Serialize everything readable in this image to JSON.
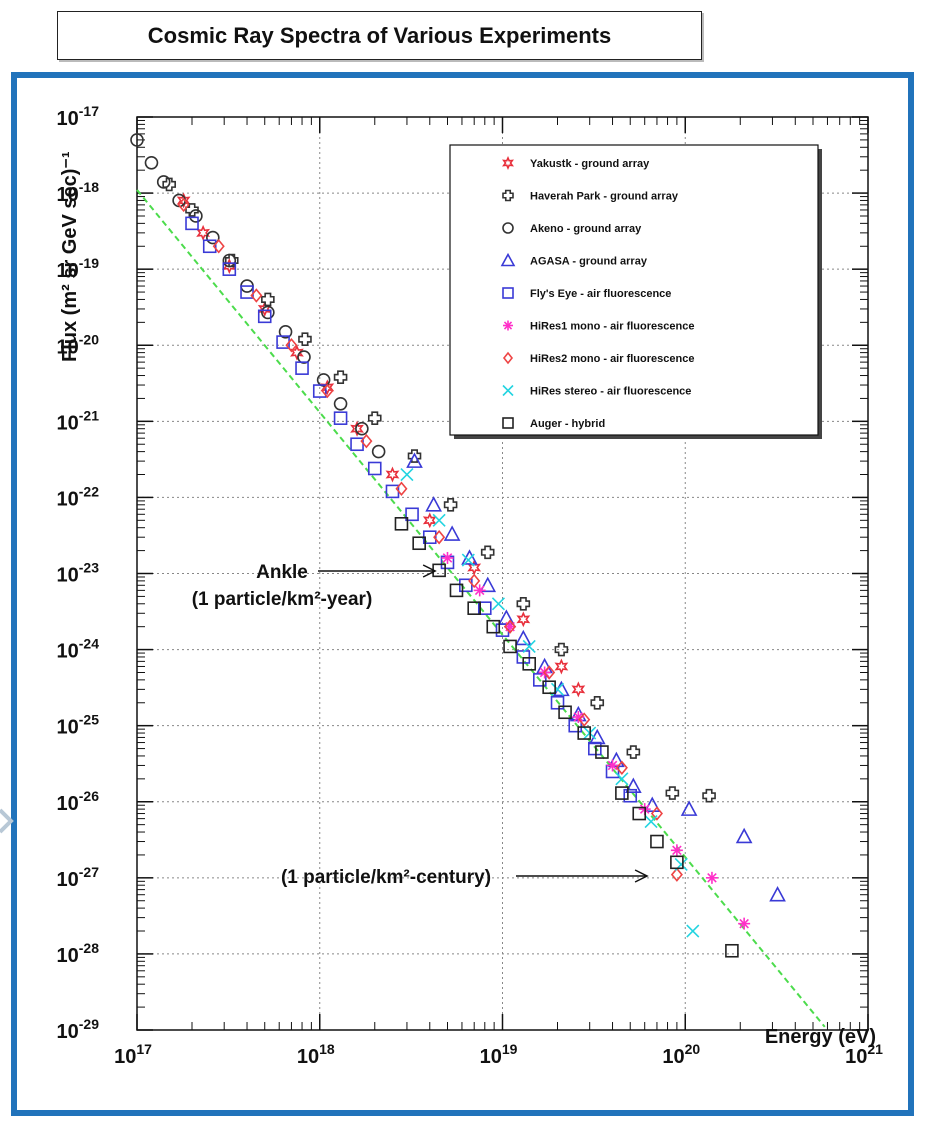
{
  "title": "Cosmic Ray Spectra of Various Experiments",
  "chart_data": {
    "type": "scatter",
    "title": "Cosmic Ray Spectra of Various Experiments",
    "xlabel": "Energy (eV)",
    "ylabel": "Flux (m² sr GeV sec)⁻¹",
    "xscale": "log",
    "yscale": "log",
    "xlim": [
      1e+17,
      1e+21
    ],
    "ylim": [
      1e-29,
      1e-17
    ],
    "grid": true,
    "legend_position": "top-right",
    "x_ticks": [
      {
        "value": 1e+17,
        "base": "10",
        "exp": "17"
      },
      {
        "value": 1e+18,
        "base": "10",
        "exp": "18"
      },
      {
        "value": 1e+19,
        "base": "10",
        "exp": "19"
      },
      {
        "value": 1e+20,
        "base": "10",
        "exp": "20"
      },
      {
        "value": 1e+21,
        "base": "10",
        "exp": "21"
      }
    ],
    "y_ticks": [
      {
        "value": 1e-17,
        "base": "10",
        "exp": "-17"
      },
      {
        "value": 1e-18,
        "base": "10",
        "exp": "-18"
      },
      {
        "value": 1e-19,
        "base": "10",
        "exp": "-19"
      },
      {
        "value": 1e-20,
        "base": "10",
        "exp": "-20"
      },
      {
        "value": 1e-21,
        "base": "10",
        "exp": "-21"
      },
      {
        "value": 1e-22,
        "base": "10",
        "exp": "-22"
      },
      {
        "value": 1e-23,
        "base": "10",
        "exp": "-23"
      },
      {
        "value": 1e-24,
        "base": "10",
        "exp": "-24"
      },
      {
        "value": 1e-25,
        "base": "10",
        "exp": "-25"
      },
      {
        "value": 1e-26,
        "base": "10",
        "exp": "-26"
      },
      {
        "value": 1e-27,
        "base": "10",
        "exp": "-27"
      },
      {
        "value": 1e-28,
        "base": "10",
        "exp": "-28"
      },
      {
        "value": 1e-29,
        "base": "10",
        "exp": "-29"
      }
    ],
    "reference_line": {
      "color": "#4cdc4c",
      "style": "dashed",
      "points": [
        [
          1e+17,
          1.1e-18
        ],
        [
          5.8e+20,
          1.1e-29
        ]
      ]
    },
    "annotations": [
      {
        "id": "ankle",
        "lines": [
          "Ankle",
          "(1 particle/km²-year)"
        ],
        "arrow_to": [
          4.5e+18,
          1.1e-23
        ]
      },
      {
        "id": "century",
        "lines": [
          "(1 particle/km²-century)"
        ],
        "arrow_to": [
          6.5e+19,
          1e-27
        ]
      }
    ],
    "series": [
      {
        "name": "Yakustk - ground array",
        "marker": "star",
        "color": "#e8303c",
        "points": [
          [
            1.8e+17,
            8e-19
          ],
          [
            2.3e+17,
            3e-19
          ],
          [
            3.2e+17,
            1.1e-19
          ],
          [
            5e+17,
            3e-20
          ],
          [
            7.5e+17,
            8e-21
          ],
          [
            1.1e+18,
            2.8e-21
          ],
          [
            1.6e+18,
            8e-22
          ],
          [
            2.5e+18,
            2e-22
          ],
          [
            4e+18,
            5e-23
          ],
          [
            7e+18,
            1.2e-23
          ],
          [
            1.3e+19,
            2.5e-24
          ],
          [
            2.1e+19,
            6e-25
          ],
          [
            2.6e+19,
            3e-25
          ]
        ]
      },
      {
        "name": "Haverah Park - ground array",
        "marker": "cross",
        "color": "#333333",
        "points": [
          [
            1.5e+17,
            1.3e-18
          ],
          [
            2e+17,
            6e-19
          ],
          [
            3.3e+17,
            1.3e-19
          ],
          [
            5.2e+17,
            4e-20
          ],
          [
            8.3e+17,
            1.2e-20
          ],
          [
            1.3e+18,
            3.8e-21
          ],
          [
            2e+18,
            1.1e-21
          ],
          [
            3.3e+18,
            3.5e-22
          ],
          [
            5.2e+18,
            8e-23
          ],
          [
            8.3e+18,
            1.9e-23
          ],
          [
            1.3e+19,
            4e-24
          ],
          [
            2.1e+19,
            1e-24
          ],
          [
            3.3e+19,
            2e-25
          ],
          [
            5.2e+19,
            4.5e-26
          ],
          [
            8.5e+19,
            1.3e-26
          ],
          [
            1.35e+20,
            1.2e-26
          ]
        ]
      },
      {
        "name": "Akeno - ground array",
        "marker": "circle",
        "color": "#333333",
        "points": [
          [
            1e+17,
            5e-18
          ],
          [
            1.2e+17,
            2.5e-18
          ],
          [
            1.4e+17,
            1.4e-18
          ],
          [
            1.7e+17,
            8e-19
          ],
          [
            2.1e+17,
            5e-19
          ],
          [
            2.6e+17,
            2.6e-19
          ],
          [
            3.2e+17,
            1.3e-19
          ],
          [
            4e+17,
            6e-20
          ],
          [
            5.2e+17,
            2.7e-20
          ],
          [
            6.5e+17,
            1.5e-20
          ],
          [
            8.2e+17,
            7e-21
          ],
          [
            1.05e+18,
            3.5e-21
          ],
          [
            1.3e+18,
            1.7e-21
          ],
          [
            1.7e+18,
            8e-22
          ],
          [
            2.1e+18,
            4e-22
          ]
        ]
      },
      {
        "name": "AGASA - ground array",
        "marker": "triangle",
        "color": "#3a3ad6",
        "points": [
          [
            3.3e+18,
            3e-22
          ],
          [
            4.2e+18,
            8e-23
          ],
          [
            5.3e+18,
            3.3e-23
          ],
          [
            6.6e+18,
            1.6e-23
          ],
          [
            8.3e+18,
            7e-24
          ],
          [
            1.05e+19,
            2.6e-24
          ],
          [
            1.3e+19,
            1.4e-24
          ],
          [
            1.7e+19,
            6e-25
          ],
          [
            2.1e+19,
            3e-25
          ],
          [
            2.6e+19,
            1.4e-25
          ],
          [
            3.3e+19,
            7e-26
          ],
          [
            4.2e+19,
            3.5e-26
          ],
          [
            5.2e+19,
            1.6e-26
          ],
          [
            6.6e+19,
            9e-27
          ],
          [
            1.05e+20,
            8e-27
          ],
          [
            2.1e+20,
            3.5e-27
          ],
          [
            3.2e+20,
            6e-28
          ]
        ]
      },
      {
        "name": "Fly's Eye - air fluorescence",
        "marker": "square",
        "color": "#3a3ad6",
        "points": [
          [
            2e+17,
            4e-19
          ],
          [
            2.5e+17,
            2e-19
          ],
          [
            3.2e+17,
            1e-19
          ],
          [
            4e+17,
            5e-20
          ],
          [
            5e+17,
            2.4e-20
          ],
          [
            6.3e+17,
            1.1e-20
          ],
          [
            8e+17,
            5e-21
          ],
          [
            1e+18,
            2.5e-21
          ],
          [
            1.3e+18,
            1.1e-21
          ],
          [
            1.6e+18,
            5e-22
          ],
          [
            2e+18,
            2.4e-22
          ],
          [
            2.5e+18,
            1.2e-22
          ],
          [
            3.2e+18,
            6e-23
          ],
          [
            4e+18,
            3e-23
          ],
          [
            5e+18,
            1.4e-23
          ],
          [
            6.3e+18,
            7e-24
          ],
          [
            8e+18,
            3.5e-24
          ],
          [
            1e+19,
            1.8e-24
          ],
          [
            1.3e+19,
            8e-25
          ],
          [
            1.6e+19,
            4e-25
          ],
          [
            2e+19,
            2e-25
          ],
          [
            2.5e+19,
            1e-25
          ],
          [
            3.2e+19,
            5e-26
          ],
          [
            4e+19,
            2.5e-26
          ],
          [
            5e+19,
            1.2e-26
          ]
        ]
      },
      {
        "name": "HiRes1 mono - air fluorescence",
        "marker": "asterisk",
        "color": "#ff2fc8",
        "points": [
          [
            5e+18,
            1.6e-23
          ],
          [
            7.5e+18,
            6e-24
          ],
          [
            1.1e+19,
            2e-24
          ],
          [
            1.7e+19,
            5e-25
          ],
          [
            2.6e+19,
            1.3e-25
          ],
          [
            4e+19,
            3e-26
          ],
          [
            6e+19,
            8e-27
          ],
          [
            9e+19,
            2.3e-27
          ],
          [
            1.4e+20,
            1e-27
          ],
          [
            2.1e+20,
            2.5e-28
          ]
        ]
      },
      {
        "name": "HiRes2 mono - air fluorescence",
        "marker": "diamond",
        "color": "#ee4444",
        "points": [
          [
            1.8e+17,
            7e-19
          ],
          [
            2.8e+17,
            2e-19
          ],
          [
            4.5e+17,
            4.5e-20
          ],
          [
            7e+17,
            1e-20
          ],
          [
            1.1e+18,
            2.5e-21
          ],
          [
            1.8e+18,
            5.5e-22
          ],
          [
            2.8e+18,
            1.3e-22
          ],
          [
            4.5e+18,
            3e-23
          ],
          [
            7e+18,
            8e-24
          ],
          [
            1.1e+19,
            2e-24
          ],
          [
            1.8e+19,
            5e-25
          ],
          [
            2.8e+19,
            1.2e-25
          ],
          [
            4.5e+19,
            2.8e-26
          ],
          [
            7e+19,
            7e-27
          ],
          [
            9e+19,
            1.1e-27
          ]
        ]
      },
      {
        "name": "HiRes stereo - air fluorescence",
        "marker": "x",
        "color": "#22d4e0",
        "points": [
          [
            3e+18,
            2e-22
          ],
          [
            4.5e+18,
            5e-23
          ],
          [
            6.5e+18,
            1.5e-23
          ],
          [
            9.5e+18,
            4e-24
          ],
          [
            1.4e+19,
            1.1e-24
          ],
          [
            2e+19,
            3e-25
          ],
          [
            3e+19,
            8e-26
          ],
          [
            4.5e+19,
            2e-26
          ],
          [
            6.5e+19,
            5.5e-27
          ],
          [
            9.5e+19,
            1.5e-27
          ],
          [
            1.1e+20,
            2e-28
          ]
        ]
      },
      {
        "name": "Auger - hybrid",
        "marker": "open-square",
        "color": "#222222",
        "points": [
          [
            2.8e+18,
            4.5e-23
          ],
          [
            3.5e+18,
            2.5e-23
          ],
          [
            4.5e+18,
            1.1e-23
          ],
          [
            5.6e+18,
            6e-24
          ],
          [
            7e+18,
            3.5e-24
          ],
          [
            8.9e+18,
            2e-24
          ],
          [
            1.1e+19,
            1.1e-24
          ],
          [
            1.4e+19,
            6.5e-25
          ],
          [
            1.8e+19,
            3.2e-25
          ],
          [
            2.2e+19,
            1.5e-25
          ],
          [
            2.8e+19,
            8e-26
          ],
          [
            3.5e+19,
            4.5e-26
          ],
          [
            4.5e+19,
            1.3e-26
          ],
          [
            5.6e+19,
            7e-27
          ],
          [
            7e+19,
            3e-27
          ],
          [
            9e+19,
            1.6e-27
          ],
          [
            1.8e+20,
            1.1e-28
          ]
        ]
      }
    ]
  }
}
